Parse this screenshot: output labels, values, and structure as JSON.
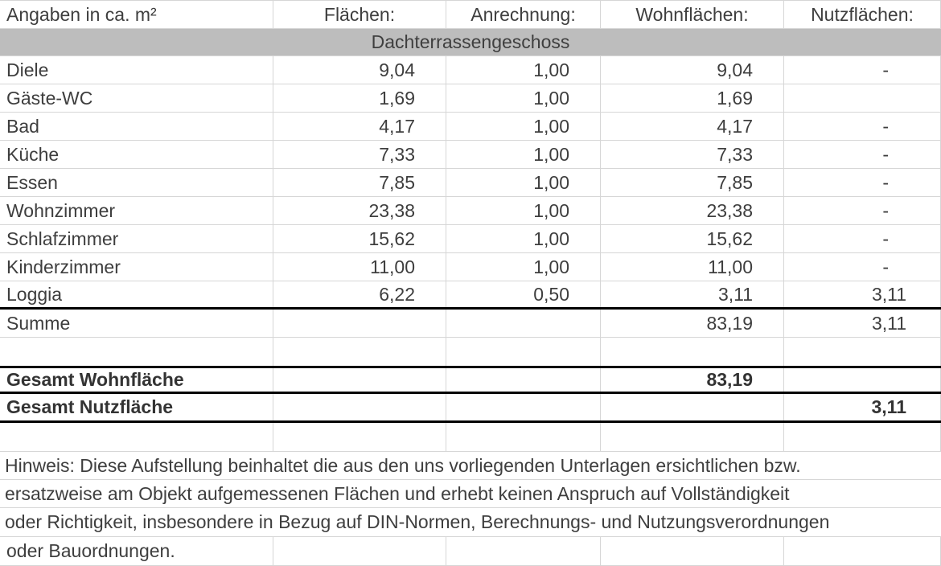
{
  "table": {
    "unit_label": "Angaben in ca. m²",
    "columns": [
      "Flächen:",
      "Anrechnung:",
      "Wohnflächen:",
      "Nutzflächen:"
    ],
    "section_title": "Dachterrassengeschoss",
    "rows": [
      {
        "label": "Diele",
        "flaeche": "9,04",
        "anrechnung": "1,00",
        "wohnflaeche": "9,04",
        "nutzflaeche": "-"
      },
      {
        "label": "Gäste-WC",
        "flaeche": "1,69",
        "anrechnung": "1,00",
        "wohnflaeche": "1,69",
        "nutzflaeche": ""
      },
      {
        "label": "Bad",
        "flaeche": "4,17",
        "anrechnung": "1,00",
        "wohnflaeche": "4,17",
        "nutzflaeche": "-"
      },
      {
        "label": "Küche",
        "flaeche": "7,33",
        "anrechnung": "1,00",
        "wohnflaeche": "7,33",
        "nutzflaeche": "-"
      },
      {
        "label": "Essen",
        "flaeche": "7,85",
        "anrechnung": "1,00",
        "wohnflaeche": "7,85",
        "nutzflaeche": "-"
      },
      {
        "label": "Wohnzimmer",
        "flaeche": "23,38",
        "anrechnung": "1,00",
        "wohnflaeche": "23,38",
        "nutzflaeche": "-"
      },
      {
        "label": "Schlafzimmer",
        "flaeche": "15,62",
        "anrechnung": "1,00",
        "wohnflaeche": "15,62",
        "nutzflaeche": "-"
      },
      {
        "label": "Kinderzimmer",
        "flaeche": "11,00",
        "anrechnung": "1,00",
        "wohnflaeche": "11,00",
        "nutzflaeche": "-"
      },
      {
        "label": "Loggia",
        "flaeche": "6,22",
        "anrechnung": "0,50",
        "wohnflaeche": "3,11",
        "nutzflaeche": "3,11"
      }
    ],
    "summe": {
      "label": "Summe",
      "wohnflaeche": "83,19",
      "nutzflaeche": "3,11"
    },
    "totals": [
      {
        "label": "Gesamt Wohnfläche",
        "value": "83,19"
      },
      {
        "label": "Gesamt Nutzfläche",
        "value": "3,11"
      }
    ],
    "note_lines": [
      "Hinweis: Diese Aufstellung beinhaltet die aus den uns vorliegenden Unterlagen ersichtlichen bzw.",
      "ersatzweise am Objekt aufgemessenen Flächen und erhebt keinen Anspruch auf Vollständigkeit",
      "oder Richtigkeit, insbesondere in Bezug auf DIN-Normen, Berechnungs- und Nutzungsverordnungen",
      "oder Bauordnungen."
    ],
    "colors": {
      "banner_bg": "#bdbdbd",
      "gridline": "#d6d6d6",
      "text": "#3e3e3e",
      "bold_text": "#333333",
      "total_rule": "#000000"
    }
  }
}
